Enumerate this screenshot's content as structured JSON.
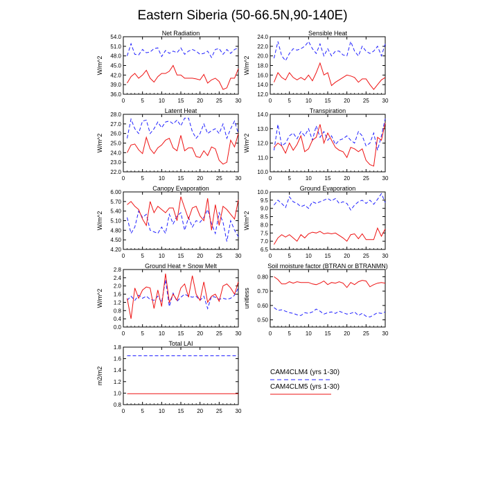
{
  "title": "Eastern Siberia (50-66.5N,90-140E)",
  "colors": {
    "clm4": "#1f1fff",
    "clm5": "#ee1111",
    "axis": "#000000"
  },
  "legend": {
    "items": [
      {
        "label": "CAM4CLM4 (yrs 1-30)",
        "style": "dashed",
        "color": "#1f1fff"
      },
      {
        "label": "CAM4CLM5 (yrs 1-30)",
        "style": "solid",
        "color": "#ee1111"
      }
    ]
  },
  "chart_data": [
    {
      "type": "line",
      "title": "Net Radiation",
      "ylabel": "W/m^2",
      "xlim": [
        0,
        30
      ],
      "ylim": [
        36,
        54
      ],
      "xticks": [
        "0",
        "5",
        "10",
        "15",
        "20",
        "25",
        "30"
      ],
      "yticks": [
        "36.0",
        "39.0",
        "42.0",
        "45.0",
        "48.0",
        "51.0",
        "54.0"
      ],
      "x": [
        1,
        2,
        3,
        4,
        5,
        6,
        7,
        8,
        9,
        10,
        11,
        12,
        13,
        14,
        15,
        16,
        17,
        18,
        19,
        20,
        21,
        22,
        23,
        24,
        25,
        26,
        27,
        28,
        29,
        30
      ],
      "series": [
        {
          "name": "CAM4CLM4 (yrs 1-30)",
          "style": "dashed",
          "values": [
            48.0,
            51.8,
            48.5,
            48.3,
            50.0,
            49.0,
            49.2,
            50.3,
            50.5,
            47.8,
            49.7,
            48.8,
            49.5,
            49.0,
            50.5,
            48.5,
            49.5,
            50.0,
            49.5,
            48.5,
            48.8,
            49.5,
            47.5,
            50.0,
            50.3,
            48.5,
            50.0,
            48.8,
            50.0,
            50.5
          ]
        },
        {
          "name": "CAM4CLM5 (yrs 1-30)",
          "style": "solid",
          "values": [
            39.5,
            41.5,
            42.5,
            41.0,
            42.0,
            43.5,
            41.0,
            39.8,
            41.5,
            42.5,
            42.5,
            43.2,
            45.0,
            42.0,
            42.0,
            41.0,
            41.0,
            41.0,
            40.8,
            40.5,
            42.2,
            39.5,
            40.5,
            41.0,
            40.0,
            37.5,
            38.0,
            41.0,
            41.0,
            44.0
          ]
        }
      ]
    },
    {
      "type": "line",
      "title": "Sensible Heat",
      "ylabel": "W/m^2",
      "xlim": [
        0,
        30
      ],
      "ylim": [
        12,
        24
      ],
      "xticks": [
        "0",
        "5",
        "10",
        "15",
        "20",
        "25",
        "30"
      ],
      "yticks": [
        "12.0",
        "14.0",
        "16.0",
        "18.0",
        "20.0",
        "22.0",
        "24.0"
      ],
      "x": [
        1,
        2,
        3,
        4,
        5,
        6,
        7,
        8,
        9,
        10,
        11,
        12,
        13,
        14,
        15,
        16,
        17,
        18,
        19,
        20,
        21,
        22,
        23,
        24,
        25,
        26,
        27,
        28,
        29,
        30
      ],
      "series": [
        {
          "name": "CAM4CLM4 (yrs 1-30)",
          "style": "dashed",
          "values": [
            19.5,
            23.0,
            20.0,
            19.0,
            20.5,
            21.5,
            21.2,
            21.5,
            22.0,
            23.0,
            21.5,
            20.5,
            22.5,
            20.0,
            21.5,
            20.0,
            21.0,
            21.0,
            20.2,
            20.0,
            23.0,
            21.0,
            20.0,
            22.0,
            21.0,
            20.5,
            21.0,
            22.0,
            20.0,
            22.5
          ]
        },
        {
          "name": "CAM4CLM5 (yrs 1-30)",
          "style": "solid",
          "values": [
            14.5,
            16.5,
            15.5,
            15.0,
            16.5,
            15.5,
            15.0,
            15.5,
            15.0,
            16.0,
            14.8,
            16.5,
            18.5,
            16.0,
            16.5,
            13.8,
            14.5,
            15.0,
            15.5,
            16.0,
            15.8,
            15.5,
            14.5,
            15.2,
            15.2,
            14.0,
            13.0,
            14.0,
            15.0,
            15.5
          ]
        }
      ]
    },
    {
      "type": "line",
      "title": "Latent Heat",
      "ylabel": "W/m^2",
      "xlim": [
        0,
        30
      ],
      "ylim": [
        22,
        28
      ],
      "xticks": [
        "0",
        "5",
        "10",
        "15",
        "20",
        "25",
        "30"
      ],
      "yticks": [
        "22.0",
        "23.0",
        "24.0",
        "25.0",
        "26.0",
        "27.0",
        "28.0"
      ],
      "x": [
        1,
        2,
        3,
        4,
        5,
        6,
        7,
        8,
        9,
        10,
        11,
        12,
        13,
        14,
        15,
        16,
        17,
        18,
        19,
        20,
        21,
        22,
        23,
        24,
        25,
        26,
        27,
        28,
        29,
        30
      ],
      "series": [
        {
          "name": "CAM4CLM4 (yrs 1-30)",
          "style": "dashed",
          "values": [
            25.5,
            27.5,
            26.5,
            26.0,
            27.3,
            27.4,
            26.0,
            26.5,
            27.2,
            26.6,
            27.2,
            27.3,
            27.0,
            27.4,
            26.8,
            27.6,
            27.6,
            26.2,
            25.5,
            26.0,
            27.0,
            26.0,
            26.3,
            26.5,
            26.0,
            27.0,
            25.5,
            26.5,
            27.3,
            26.0
          ]
        },
        {
          "name": "CAM4CLM5 (yrs 1-30)",
          "style": "solid",
          "values": [
            24.0,
            24.8,
            24.9,
            24.3,
            23.9,
            25.6,
            24.4,
            23.9,
            24.5,
            24.8,
            25.3,
            25.5,
            24.5,
            24.2,
            25.8,
            24.2,
            24.5,
            24.5,
            23.6,
            23.5,
            24.2,
            23.7,
            24.6,
            24.4,
            23.2,
            22.8,
            23.0,
            25.3,
            24.6,
            26.0
          ]
        }
      ]
    },
    {
      "type": "line",
      "title": "Transpiration",
      "ylabel": "W/m^2",
      "xlim": [
        0,
        30
      ],
      "ylim": [
        10,
        14
      ],
      "xticks": [
        "0",
        "5",
        "10",
        "15",
        "20",
        "25",
        "30"
      ],
      "yticks": [
        "10.0",
        "11.0",
        "12.0",
        "13.0",
        "14.0"
      ],
      "x": [
        1,
        2,
        3,
        4,
        5,
        6,
        7,
        8,
        9,
        10,
        11,
        12,
        13,
        14,
        15,
        16,
        17,
        18,
        19,
        20,
        21,
        22,
        23,
        24,
        25,
        26,
        27,
        28,
        29,
        30
      ],
      "series": [
        {
          "name": "CAM4CLM4 (yrs 1-30)",
          "style": "dashed",
          "values": [
            11.5,
            13.3,
            11.8,
            12.0,
            12.5,
            12.7,
            12.3,
            12.8,
            12.5,
            13.0,
            12.2,
            13.2,
            12.4,
            12.8,
            12.2,
            12.5,
            11.9,
            12.2,
            12.3,
            12.5,
            12.2,
            12.0,
            12.8,
            12.5,
            11.8,
            12.0,
            12.7,
            11.5,
            12.5,
            13.7
          ]
        },
        {
          "name": "CAM4CLM5 (yrs 1-30)",
          "style": "solid",
          "values": [
            11.7,
            12.0,
            11.8,
            11.3,
            12.0,
            11.5,
            11.9,
            12.5,
            11.4,
            11.6,
            12.2,
            12.4,
            13.3,
            12.0,
            12.7,
            12.2,
            11.7,
            11.5,
            11.4,
            11.0,
            11.7,
            11.6,
            11.4,
            11.6,
            10.8,
            10.5,
            10.4,
            12.4,
            12.2,
            13.4
          ]
        }
      ]
    },
    {
      "type": "line",
      "title": "Canopy Evaporation",
      "ylabel": "W/m^2",
      "xlim": [
        0,
        30
      ],
      "ylim": [
        4.2,
        6.0
      ],
      "xticks": [
        "0",
        "5",
        "10",
        "15",
        "20",
        "25",
        "30"
      ],
      "yticks": [
        "4.20",
        "4.50",
        "4.80",
        "5.10",
        "5.40",
        "5.70",
        "6.00"
      ],
      "x": [
        1,
        2,
        3,
        4,
        5,
        6,
        7,
        8,
        9,
        10,
        11,
        12,
        13,
        14,
        15,
        16,
        17,
        18,
        19,
        20,
        21,
        22,
        23,
        24,
        25,
        26,
        27,
        28,
        29,
        30
      ],
      "series": [
        {
          "name": "CAM4CLM4 (yrs 1-30)",
          "style": "dashed",
          "values": [
            5.2,
            4.7,
            4.9,
            5.4,
            5.2,
            5.3,
            4.8,
            4.75,
            4.7,
            4.9,
            4.7,
            5.3,
            5.0,
            5.25,
            5.35,
            4.8,
            5.2,
            4.9,
            5.1,
            5.05,
            5.2,
            5.45,
            5.0,
            4.7,
            5.35,
            5.05,
            4.45,
            5.1,
            4.8,
            4.6
          ]
        },
        {
          "name": "CAM4CLM5 (yrs 1-30)",
          "style": "solid",
          "values": [
            5.6,
            5.7,
            5.55,
            5.45,
            5.15,
            4.95,
            5.7,
            5.35,
            5.55,
            5.45,
            5.35,
            5.5,
            5.5,
            5.1,
            5.85,
            5.5,
            5.15,
            5.5,
            5.55,
            5.25,
            5.1,
            5.8,
            4.8,
            5.6,
            4.95,
            5.55,
            5.45,
            5.3,
            5.15,
            5.75
          ]
        }
      ]
    },
    {
      "type": "line",
      "title": "Ground Evaporation",
      "ylabel": "W/m^2",
      "xlim": [
        0,
        30
      ],
      "ylim": [
        6.5,
        10
      ],
      "xticks": [
        "0",
        "5",
        "10",
        "15",
        "20",
        "25",
        "30"
      ],
      "yticks": [
        "6.5",
        "7.0",
        "7.5",
        "8.0",
        "8.5",
        "9.0",
        "9.5",
        "10.0"
      ],
      "x": [
        1,
        2,
        3,
        4,
        5,
        6,
        7,
        8,
        9,
        10,
        11,
        12,
        13,
        14,
        15,
        16,
        17,
        18,
        19,
        20,
        21,
        22,
        23,
        24,
        25,
        26,
        27,
        28,
        29,
        30
      ],
      "series": [
        {
          "name": "CAM4CLM4 (yrs 1-30)",
          "style": "dashed",
          "values": [
            9.2,
            9.5,
            9.3,
            9.05,
            9.7,
            9.4,
            9.3,
            9.1,
            9.2,
            9.0,
            9.4,
            9.3,
            9.4,
            9.5,
            9.6,
            9.45,
            9.6,
            9.3,
            9.4,
            9.3,
            8.9,
            9.2,
            9.4,
            9.5,
            9.3,
            9.5,
            9.25,
            9.55,
            9.9,
            9.35
          ]
        },
        {
          "name": "CAM4CLM5 (yrs 1-30)",
          "style": "solid",
          "values": [
            6.8,
            7.2,
            7.4,
            7.25,
            7.4,
            7.2,
            7.0,
            7.4,
            7.2,
            7.45,
            7.55,
            7.5,
            7.6,
            7.45,
            7.5,
            7.45,
            7.5,
            7.35,
            7.2,
            7.0,
            7.4,
            7.45,
            7.15,
            7.45,
            7.1,
            7.1,
            7.1,
            7.8,
            7.3,
            7.75
          ]
        }
      ]
    },
    {
      "type": "line",
      "title": "Ground Heat + Snow Melt",
      "ylabel": "W/m^2",
      "xlim": [
        0,
        30
      ],
      "ylim": [
        0,
        2.8
      ],
      "xticks": [
        "0",
        "5",
        "10",
        "15",
        "20",
        "25",
        "30"
      ],
      "yticks": [
        "0.0",
        "0.4",
        "0.8",
        "1.2",
        "1.6",
        "2.0",
        "2.4",
        "2.8"
      ],
      "x": [
        1,
        2,
        3,
        4,
        5,
        6,
        7,
        8,
        9,
        10,
        11,
        12,
        13,
        14,
        15,
        16,
        17,
        18,
        19,
        20,
        21,
        22,
        23,
        24,
        25,
        26,
        27,
        28,
        29,
        30
      ],
      "series": [
        {
          "name": "CAM4CLM4 (yrs 1-30)",
          "style": "dashed",
          "values": [
            1.3,
            1.5,
            1.3,
            1.55,
            1.4,
            1.5,
            1.35,
            1.3,
            1.5,
            1.2,
            2.3,
            1.0,
            1.65,
            1.25,
            1.45,
            1.6,
            1.5,
            1.45,
            1.5,
            1.3,
            1.5,
            0.9,
            1.5,
            1.45,
            1.35,
            1.4,
            1.35,
            1.4,
            1.55,
            1.9
          ]
        },
        {
          "name": "CAM4CLM5 (yrs 1-30)",
          "style": "solid",
          "values": [
            1.4,
            0.4,
            1.9,
            1.4,
            1.8,
            1.95,
            1.9,
            0.9,
            1.8,
            1.0,
            2.6,
            1.2,
            1.6,
            1.3,
            1.9,
            2.1,
            1.45,
            2.5,
            1.6,
            1.3,
            2.2,
            1.2,
            1.5,
            1.6,
            1.25,
            2.0,
            2.1,
            1.9,
            1.6,
            2.2
          ]
        }
      ]
    },
    {
      "type": "line",
      "title": "Soil moisture factor (BTRAN or BTRANMN)",
      "ylabel": "unitless",
      "xlim": [
        0,
        30
      ],
      "ylim": [
        0.45,
        0.85
      ],
      "xticks": [
        "0",
        "5",
        "10",
        "15",
        "20",
        "25",
        "30"
      ],
      "yticks": [
        "0.50",
        "0.60",
        "0.70",
        "0.80"
      ],
      "x": [
        1,
        2,
        3,
        4,
        5,
        6,
        7,
        8,
        9,
        10,
        11,
        12,
        13,
        14,
        15,
        16,
        17,
        18,
        19,
        20,
        21,
        22,
        23,
        24,
        25,
        26,
        27,
        28,
        29,
        30
      ],
      "series": [
        {
          "name": "CAM4CLM4 (yrs 1-30)",
          "style": "dashed",
          "values": [
            0.585,
            0.565,
            0.57,
            0.56,
            0.55,
            0.545,
            0.535,
            0.53,
            0.55,
            0.545,
            0.555,
            0.575,
            0.56,
            0.54,
            0.55,
            0.555,
            0.545,
            0.56,
            0.55,
            0.54,
            0.545,
            0.555,
            0.53,
            0.545,
            0.525,
            0.52,
            0.535,
            0.55,
            0.545,
            0.555
          ]
        },
        {
          "name": "CAM4CLM5 (yrs 1-30)",
          "style": "solid",
          "values": [
            0.8,
            0.78,
            0.75,
            0.75,
            0.765,
            0.755,
            0.765,
            0.76,
            0.76,
            0.76,
            0.75,
            0.745,
            0.755,
            0.77,
            0.745,
            0.76,
            0.755,
            0.765,
            0.755,
            0.725,
            0.76,
            0.745,
            0.765,
            0.775,
            0.77,
            0.73,
            0.745,
            0.755,
            0.76,
            0.755
          ]
        }
      ]
    },
    {
      "type": "line",
      "title": "Total LAI",
      "ylabel": "m2/m2",
      "xlim": [
        0,
        30
      ],
      "ylim": [
        0.8,
        1.8
      ],
      "xticks": [
        "0",
        "5",
        "10",
        "15",
        "20",
        "25",
        "30"
      ],
      "yticks": [
        "0.8",
        "1.0",
        "1.2",
        "1.4",
        "1.6",
        "1.8"
      ],
      "x": [
        1,
        2,
        3,
        4,
        5,
        6,
        7,
        8,
        9,
        10,
        11,
        12,
        13,
        14,
        15,
        16,
        17,
        18,
        19,
        20,
        21,
        22,
        23,
        24,
        25,
        26,
        27,
        28,
        29,
        30
      ],
      "series": [
        {
          "name": "CAM4CLM4 (yrs 1-30)",
          "style": "dashed",
          "values": [
            1.65,
            1.65,
            1.65,
            1.65,
            1.65,
            1.65,
            1.65,
            1.65,
            1.65,
            1.65,
            1.65,
            1.65,
            1.65,
            1.65,
            1.65,
            1.65,
            1.65,
            1.65,
            1.65,
            1.65,
            1.65,
            1.65,
            1.65,
            1.65,
            1.65,
            1.65,
            1.65,
            1.65,
            1.65,
            1.65
          ]
        },
        {
          "name": "CAM4CLM5 (yrs 1-30)",
          "style": "solid",
          "values": [
            0.99,
            0.99,
            0.99,
            0.99,
            0.99,
            0.99,
            0.99,
            0.99,
            0.99,
            0.99,
            0.99,
            0.99,
            0.99,
            0.99,
            0.99,
            0.99,
            0.99,
            0.99,
            0.99,
            0.99,
            0.99,
            0.99,
            0.99,
            0.99,
            0.99,
            0.99,
            0.99,
            0.99,
            0.99,
            0.99
          ]
        }
      ]
    }
  ]
}
